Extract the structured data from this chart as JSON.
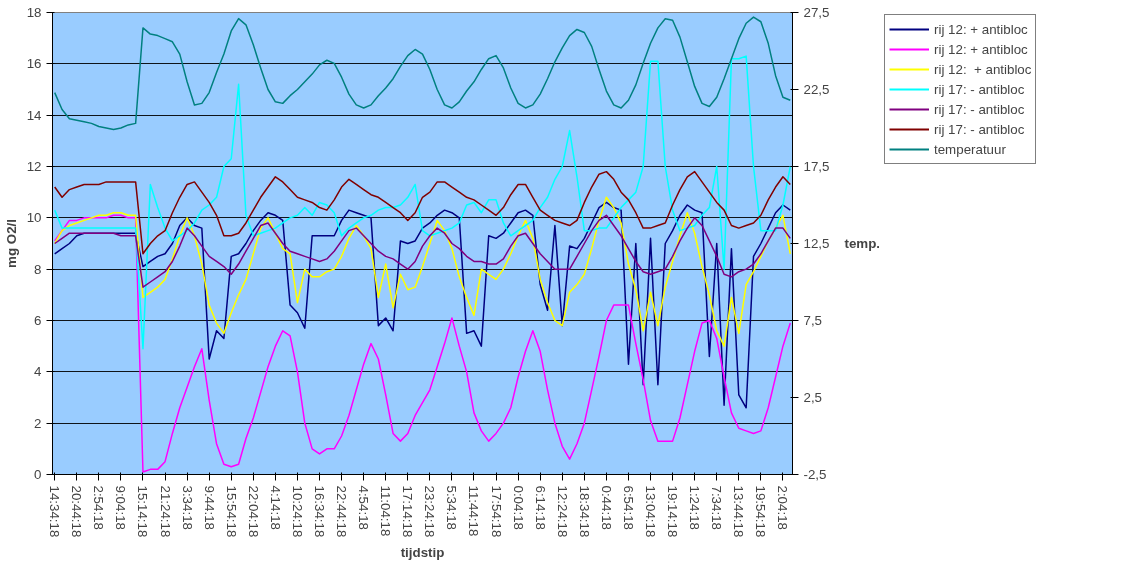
{
  "chart_data": {
    "type": "line",
    "xlabel": "tijdstip",
    "ylabel": "mg O2/l",
    "y2label": "temp.",
    "ylim": [
      0,
      18
    ],
    "y2lim": [
      -2.5,
      27.5
    ],
    "categories": [
      "14:34:18",
      null,
      null,
      "20:44:18",
      null,
      null,
      "2:54:18",
      null,
      null,
      "9:04:18",
      null,
      null,
      "15:14:18",
      null,
      null,
      "21:24:18",
      null,
      null,
      "3:34:18",
      null,
      null,
      "9:44:18",
      null,
      null,
      "15:54:18",
      null,
      null,
      "22:04:18",
      null,
      null,
      "4:14:18",
      null,
      null,
      "10:24:18",
      null,
      null,
      "16:34:18",
      null,
      null,
      "22:44:18",
      null,
      null,
      "4:54:18",
      null,
      null,
      "11:04:18",
      null,
      null,
      "17:14:18",
      null,
      null,
      "23:24:18",
      null,
      null,
      "5:34:18",
      null,
      null,
      "11:44:18",
      null,
      null,
      "17:54:18",
      null,
      null,
      "0:04:18",
      null,
      null,
      "6:14:18",
      null,
      null,
      "12:24:18",
      null,
      null,
      "18:34:18",
      null,
      null,
      "0:44:18",
      null,
      null,
      "6:54:18",
      null,
      null,
      "13:04:18",
      null,
      null,
      "19:14:18",
      null,
      null,
      "1:24:18",
      null,
      null,
      "7:34:18",
      null,
      null,
      "13:44:18",
      null,
      null,
      "19:54:18",
      null,
      null,
      "2:04:18",
      null
    ],
    "yticks": [
      0,
      2,
      4,
      6,
      8,
      10,
      12,
      14,
      16,
      18
    ],
    "y2ticks": [
      {
        "value": -2.5,
        "label": "-2,5"
      },
      {
        "value": 2.5,
        "label": "2,5"
      },
      {
        "value": 7.5,
        "label": "7,5"
      },
      {
        "value": 12.5,
        "label": "12,5"
      },
      {
        "value": 17.5,
        "label": "17,5"
      },
      {
        "value": 22.5,
        "label": "22,5"
      },
      {
        "value": 27.5,
        "label": "27,5"
      }
    ],
    "grid": "y",
    "legend": "top right",
    "marker": "none",
    "line_style": "solid",
    "series": [
      {
        "name": "rij 12: + antibloc",
        "color": "#000080",
        "values": [
          8.6,
          8.8,
          9.0,
          9.3,
          9.4,
          9.4,
          9.4,
          9.4,
          9.4,
          9.4,
          9.4,
          9.4,
          8.1,
          8.3,
          8.5,
          8.6,
          9.0,
          9.7,
          10.0,
          9.7,
          9.6,
          4.5,
          5.6,
          5.3,
          8.5,
          8.6,
          9.0,
          9.5,
          9.9,
          10.2,
          10.1,
          9.9,
          6.6,
          6.3,
          5.7,
          9.3,
          9.3,
          9.3,
          9.3,
          9.9,
          10.3,
          10.2,
          10.1,
          10.0,
          5.8,
          6.1,
          5.6,
          9.1,
          9.0,
          9.1,
          9.6,
          9.8,
          10.1,
          10.3,
          10.2,
          10.0,
          5.5,
          5.6,
          5.0,
          9.3,
          9.2,
          9.4,
          9.8,
          10.2,
          10.3,
          10.1,
          7.4,
          6.4,
          9.7,
          5.8,
          8.9,
          8.8,
          9.2,
          9.8,
          10.4,
          10.6,
          10.4,
          10.3,
          4.3,
          9.0,
          3.5,
          9.2,
          3.5,
          9.0,
          9.5,
          10.1,
          10.5,
          10.3,
          10.2,
          4.6,
          9.0,
          2.7,
          8.8,
          3.1,
          2.6,
          8.5,
          9.0,
          9.6,
          10.2,
          10.5,
          10.3
        ]
      },
      {
        "name": "rij 12: + antibloc",
        "color": "#ff00ff",
        "values": [
          9.1,
          9.5,
          9.9,
          9.9,
          10.0,
          10.0,
          10.0,
          10.0,
          10.1,
          10.1,
          10.0,
          10.0,
          0.1,
          0.2,
          0.2,
          0.5,
          1.6,
          2.6,
          3.4,
          4.2,
          4.9,
          2.9,
          1.2,
          0.4,
          0.3,
          0.4,
          1.4,
          2.2,
          3.2,
          4.2,
          5.0,
          5.6,
          5.4,
          4.0,
          2.0,
          1.0,
          0.8,
          1.0,
          1.0,
          1.5,
          2.3,
          3.3,
          4.3,
          5.1,
          4.5,
          3.1,
          1.6,
          1.3,
          1.6,
          2.3,
          2.8,
          3.3,
          4.2,
          5.1,
          6.1,
          5.0,
          4.0,
          2.4,
          1.7,
          1.3,
          1.6,
          2.0,
          2.6,
          3.8,
          4.8,
          5.6,
          4.8,
          3.3,
          2.0,
          1.1,
          0.6,
          1.2,
          2.0,
          3.3,
          4.6,
          6.0,
          6.6,
          6.6,
          6.6,
          5.1,
          3.7,
          2.1,
          1.3,
          1.3,
          1.3,
          2.2,
          3.5,
          4.8,
          5.9,
          6.0,
          5.3,
          3.8,
          2.4,
          1.8,
          1.7,
          1.6,
          1.7,
          2.6,
          3.8,
          5.0,
          5.9
        ]
      },
      {
        "name": "rij 12:  + antibloc",
        "color": "#ffff00",
        "values": [
          9.0,
          9.5,
          9.7,
          9.8,
          9.9,
          10.0,
          10.1,
          10.1,
          10.2,
          10.2,
          10.1,
          10.1,
          6.9,
          7.1,
          7.3,
          7.6,
          8.4,
          9.3,
          10.0,
          9.3,
          8.2,
          6.6,
          5.9,
          5.5,
          6.3,
          7.0,
          7.6,
          8.6,
          9.6,
          10.0,
          9.4,
          8.8,
          8.6,
          6.7,
          8.0,
          7.7,
          7.7,
          7.9,
          8.0,
          8.5,
          9.2,
          9.7,
          9.3,
          8.8,
          6.9,
          8.2,
          6.5,
          7.8,
          7.2,
          7.3,
          8.1,
          9.0,
          9.9,
          9.5,
          8.8,
          7.7,
          6.9,
          6.2,
          8.0,
          7.8,
          7.6,
          8.0,
          8.6,
          9.3,
          9.9,
          9.2,
          7.6,
          6.7,
          6.0,
          5.8,
          7.1,
          7.4,
          7.8,
          8.8,
          9.9,
          10.8,
          10.4,
          9.8,
          8.2,
          7.2,
          5.6,
          7.1,
          5.8,
          7.3,
          8.3,
          9.3,
          10.2,
          9.4,
          8.1,
          7.0,
          5.6,
          5.0,
          6.9,
          5.5,
          7.4,
          7.9,
          8.5,
          9.1,
          9.6,
          10.1,
          8.6
        ]
      },
      {
        "name": "rij 17: - antibloc",
        "color": "#00ffff",
        "values": [
          10.3,
          9.6,
          9.6,
          9.6,
          9.6,
          9.6,
          9.6,
          9.6,
          9.6,
          9.6,
          9.6,
          9.6,
          4.9,
          11.3,
          10.4,
          9.6,
          9.1,
          9.3,
          9.5,
          9.8,
          10.3,
          10.5,
          10.8,
          12.0,
          12.3,
          15.2,
          10.1,
          9.3,
          9.4,
          9.5,
          9.6,
          9.8,
          10.0,
          10.1,
          10.4,
          10.1,
          10.6,
          10.5,
          10.2,
          9.3,
          9.6,
          9.8,
          10.0,
          10.1,
          10.3,
          10.4,
          10.4,
          10.5,
          10.8,
          11.3,
          9.5,
          9.3,
          9.4,
          9.5,
          9.6,
          9.8,
          10.5,
          10.6,
          10.2,
          10.7,
          10.7,
          9.8,
          9.3,
          9.5,
          9.7,
          9.9,
          10.4,
          10.8,
          11.5,
          12.0,
          13.4,
          11.6,
          9.5,
          9.5,
          9.6,
          9.6,
          10.0,
          10.4,
          10.7,
          11.0,
          12.0,
          16.1,
          16.1,
          12.0,
          10.3,
          9.5,
          9.6,
          9.7,
          10.1,
          10.4,
          12.0,
          8.0,
          16.2,
          16.2,
          16.3,
          12.0,
          9.5,
          9.5,
          9.5,
          10.5,
          12.0
        ]
      },
      {
        "name": "rij 17: - antibloc",
        "color": "#800080",
        "values": [
          9.0,
          9.2,
          9.4,
          9.4,
          9.4,
          9.4,
          9.4,
          9.4,
          9.4,
          9.3,
          9.3,
          9.3,
          7.3,
          7.5,
          7.7,
          7.9,
          8.3,
          8.9,
          9.6,
          9.3,
          8.9,
          8.5,
          8.3,
          8.1,
          7.8,
          8.2,
          8.7,
          9.2,
          9.7,
          9.8,
          9.4,
          9.0,
          8.7,
          8.6,
          8.5,
          8.4,
          8.3,
          8.4,
          8.7,
          9.1,
          9.5,
          9.6,
          9.3,
          9.0,
          8.7,
          8.5,
          8.4,
          8.2,
          8.0,
          8.3,
          8.9,
          9.3,
          9.6,
          9.4,
          9.0,
          8.8,
          8.5,
          8.3,
          8.3,
          8.2,
          8.2,
          8.4,
          8.9,
          9.3,
          9.4,
          9.0,
          8.6,
          8.3,
          8.0,
          8.0,
          8.0,
          8.5,
          9.0,
          9.5,
          9.9,
          10.1,
          9.7,
          9.3,
          8.8,
          8.3,
          7.9,
          7.8,
          7.9,
          8.0,
          8.5,
          9.1,
          9.6,
          10.0,
          9.7,
          9.1,
          8.5,
          7.8,
          7.7,
          7.9,
          8.0,
          8.2,
          8.6,
          9.1,
          9.6,
          9.6,
          9.2
        ]
      },
      {
        "name": "rij 17: - antibloc",
        "color": "#800000",
        "values": [
          11.2,
          10.8,
          11.1,
          11.2,
          11.3,
          11.3,
          11.3,
          11.4,
          11.4,
          11.4,
          11.4,
          11.4,
          8.6,
          9.0,
          9.3,
          9.5,
          10.2,
          10.8,
          11.3,
          11.4,
          11.0,
          10.6,
          10.1,
          9.3,
          9.3,
          9.4,
          9.8,
          10.3,
          10.8,
          11.2,
          11.6,
          11.4,
          11.1,
          10.8,
          10.7,
          10.6,
          10.4,
          10.3,
          10.7,
          11.2,
          11.5,
          11.3,
          11.1,
          10.9,
          10.8,
          10.6,
          10.4,
          10.2,
          9.9,
          10.2,
          10.8,
          11.0,
          11.4,
          11.4,
          11.2,
          11.0,
          10.8,
          10.7,
          10.5,
          10.3,
          10.1,
          10.4,
          10.9,
          11.3,
          11.3,
          10.8,
          10.3,
          10.1,
          9.9,
          9.8,
          9.7,
          9.9,
          10.6,
          11.2,
          11.7,
          11.8,
          11.5,
          11.0,
          10.7,
          10.2,
          9.6,
          9.6,
          9.7,
          9.8,
          10.5,
          11.1,
          11.6,
          11.8,
          11.4,
          11.0,
          10.6,
          10.3,
          9.7,
          9.6,
          9.7,
          9.8,
          10.1,
          10.7,
          11.2,
          11.6,
          11.3
        ]
      },
      {
        "name": "temperatuur",
        "color": "#008080",
        "axis": "y2",
        "values": [
          22.3,
          21.2,
          20.6,
          20.5,
          20.4,
          20.3,
          20.1,
          20.0,
          19.9,
          20.0,
          20.2,
          20.3,
          26.5,
          26.1,
          26.0,
          25.8,
          25.6,
          24.8,
          23.0,
          21.5,
          21.6,
          22.3,
          23.6,
          24.8,
          26.3,
          27.1,
          26.7,
          25.4,
          23.9,
          22.5,
          21.7,
          21.6,
          22.1,
          22.5,
          23.0,
          23.5,
          24.1,
          24.4,
          24.2,
          23.3,
          22.2,
          21.5,
          21.3,
          21.5,
          22.1,
          22.6,
          23.2,
          24.0,
          24.7,
          25.1,
          24.8,
          23.8,
          22.5,
          21.5,
          21.3,
          21.7,
          22.4,
          23.0,
          23.8,
          24.5,
          24.7,
          23.9,
          22.6,
          21.6,
          21.3,
          21.5,
          22.2,
          23.2,
          24.3,
          25.2,
          26.0,
          26.4,
          26.2,
          25.3,
          23.8,
          22.4,
          21.5,
          21.3,
          21.8,
          22.8,
          24.2,
          25.5,
          26.5,
          27.1,
          27.0,
          25.9,
          24.3,
          22.7,
          21.6,
          21.4,
          22.0,
          23.2,
          24.5,
          25.8,
          26.8,
          27.2,
          26.9,
          25.5,
          23.4,
          22.0,
          21.8
        ]
      }
    ]
  }
}
